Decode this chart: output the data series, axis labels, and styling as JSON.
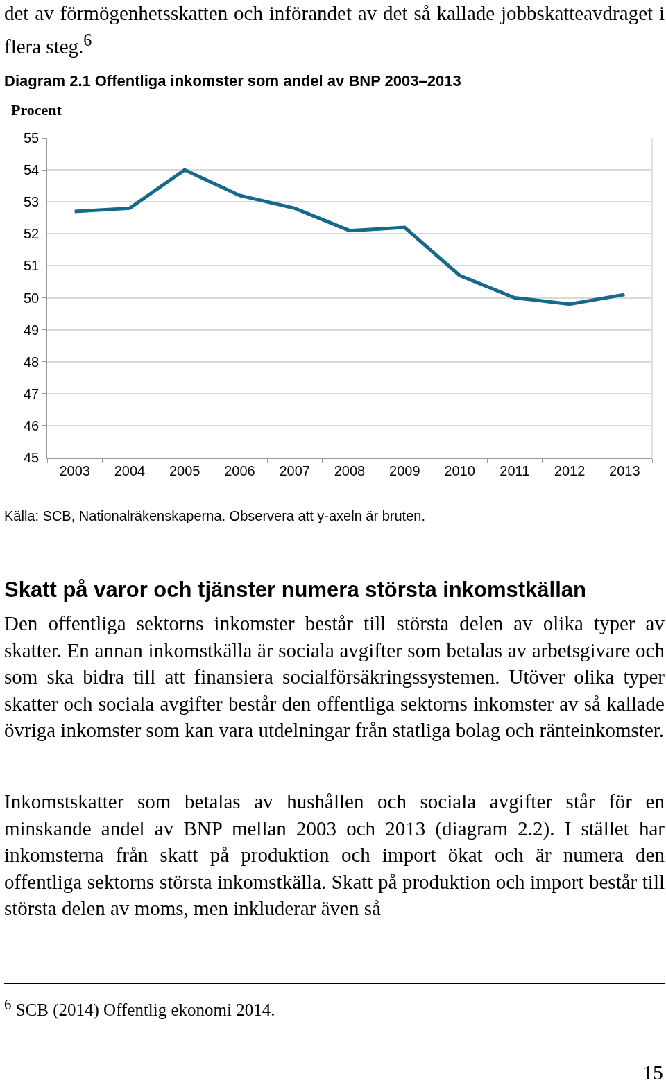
{
  "chart_data": {
    "type": "line",
    "title": "Diagram 2.1 Offentliga inkomster som andel av BNP 2003–2013",
    "ylabel": "Procent",
    "categories": [
      "2003",
      "2004",
      "2005",
      "2006",
      "2007",
      "2008",
      "2009",
      "2010",
      "2011",
      "2012",
      "2013"
    ],
    "series": [
      {
        "color": "#17698c",
        "values": [
          52.7,
          52.8,
          54.0,
          53.2,
          52.8,
          52.1,
          52.2,
          50.7,
          50.0,
          49.8,
          50.1
        ]
      }
    ],
    "ylim": [
      45,
      55
    ],
    "yticks": [
      45,
      46,
      47,
      48,
      49,
      50,
      51,
      52,
      53,
      54,
      55
    ],
    "grid": "y",
    "marker": "none",
    "line_style": "solid",
    "annotations": [
      "det av förmögenhetsskatten och införandet av det så kallade jobbskatteavdraget i flera steg.$^{6}$",
      "Källa: SCB, Nationalräkenskaperna. Observera att y-axeln är bruten.",
      "Skatt på varor och tjänster numera största inkomstkällan",
      "Den offentliga sektorns inkomster består till största delen av olika typer av skatter. En annan inkomstkälla är sociala avgifter som betalas av arbetsgivare och som ska bidra till att finansiera socialförsäkringssystemen. Utöver olika typer skatter och sociala avgifter består den offentliga sektorns inkomster av så kallade övriga inkomster som kan vara utdelningar från statliga bolag och ränteinkomster.",
      "Inkomstskatter som betalas av hushållen och sociala avgifter står för en minskande andel av BNP mellan 2003 och 2013 (diagram 2.2). I stället har inkomsterna från skatt på produktion och import ökat och är numera den offentliga sektorns största inkomstkälla. Skatt på produktion och import består till största delen av moms, men inkluderar även så",
      "$^{6}$ SCB (2014) Offentlig ekonomi 2014.",
      "15"
    ]
  }
}
